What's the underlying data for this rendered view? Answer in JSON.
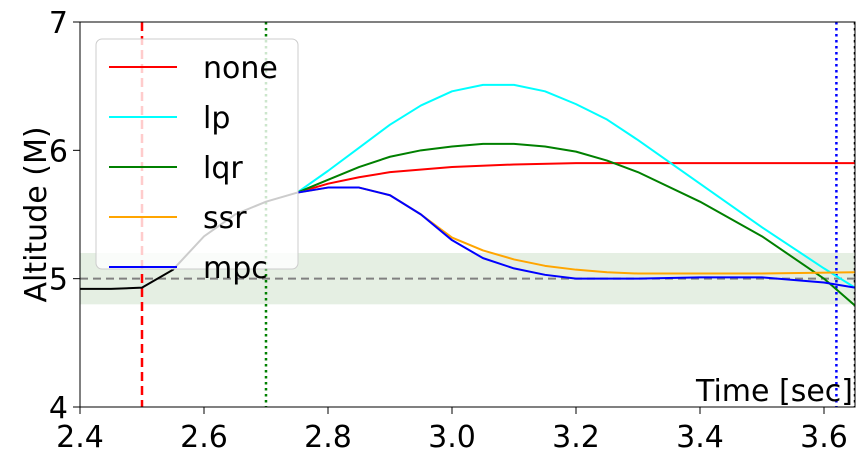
{
  "chart_data": {
    "type": "line",
    "title": "",
    "xlabel": "Time [sec]",
    "ylabel": "Altitude (M)",
    "xlim": [
      2.4,
      3.65
    ],
    "ylim": [
      4,
      7
    ],
    "xticks": [
      2.4,
      2.6,
      2.8,
      3.0,
      3.2,
      3.4,
      3.6
    ],
    "xtick_labels": [
      "2.4",
      "2.6",
      "2.8",
      "3.0",
      "3.2",
      "3.4",
      "3.6"
    ],
    "yticks": [
      4,
      5,
      6,
      7
    ],
    "ytick_labels": [
      "4",
      "5",
      "6",
      "7"
    ],
    "grid": false,
    "legend": {
      "location": "upper left",
      "entries": [
        "none",
        "lp",
        "lqr",
        "ssr",
        "mpc"
      ]
    },
    "colors": {
      "none": "#ff0000",
      "lp": "#00ffff",
      "lqr": "#008000",
      "ssr": "#ffa500",
      "mpc": "#0000ff",
      "band": "#e5efe3",
      "target_line": "#808080",
      "shared_segment": "#000000"
    },
    "target_band": {
      "y_min": 4.8,
      "y_max": 5.2
    },
    "target_line": {
      "y": 5.0,
      "style": "dashed"
    },
    "vertical_lines": [
      {
        "x": 2.5,
        "color": "#ff0000",
        "style": "dashed"
      },
      {
        "x": 2.7,
        "color": "#008000",
        "style": "dotted"
      },
      {
        "x": 3.62,
        "color": "#0000ff",
        "style": "dotted"
      },
      {
        "x": 3.65,
        "color": "#000000",
        "style": "dotted"
      }
    ],
    "shared_segment": {
      "x": [
        2.4,
        2.45,
        2.5,
        2.55,
        2.6,
        2.65,
        2.7,
        2.75
      ],
      "y": [
        4.92,
        4.92,
        4.93,
        5.07,
        5.33,
        5.5,
        5.6,
        5.67
      ]
    },
    "series": [
      {
        "name": "none",
        "x": [
          2.75,
          2.8,
          2.85,
          2.9,
          3.0,
          3.1,
          3.2,
          3.3,
          3.4,
          3.5,
          3.65
        ],
        "y": [
          5.67,
          5.74,
          5.79,
          5.83,
          5.87,
          5.89,
          5.9,
          5.9,
          5.9,
          5.9,
          5.9
        ]
      },
      {
        "name": "lp",
        "x": [
          2.75,
          2.8,
          2.85,
          2.9,
          2.95,
          3.0,
          3.05,
          3.1,
          3.15,
          3.2,
          3.25,
          3.3,
          3.4,
          3.5,
          3.6,
          3.65
        ],
        "y": [
          5.67,
          5.84,
          6.02,
          6.2,
          6.35,
          6.46,
          6.51,
          6.51,
          6.46,
          6.36,
          6.24,
          6.08,
          5.74,
          5.4,
          5.08,
          4.93
        ]
      },
      {
        "name": "lqr",
        "x": [
          2.75,
          2.8,
          2.85,
          2.9,
          2.95,
          3.0,
          3.05,
          3.1,
          3.15,
          3.2,
          3.25,
          3.3,
          3.4,
          3.5,
          3.6,
          3.65
        ],
        "y": [
          5.67,
          5.77,
          5.87,
          5.95,
          6.0,
          6.03,
          6.05,
          6.05,
          6.03,
          5.99,
          5.92,
          5.83,
          5.6,
          5.33,
          5.0,
          4.79
        ]
      },
      {
        "name": "ssr",
        "x": [
          2.75,
          2.8,
          2.85,
          2.9,
          2.95,
          3.0,
          3.05,
          3.1,
          3.15,
          3.2,
          3.25,
          3.3,
          3.4,
          3.5,
          3.65
        ],
        "y": [
          5.67,
          5.71,
          5.71,
          5.65,
          5.5,
          5.32,
          5.22,
          5.15,
          5.1,
          5.07,
          5.05,
          5.04,
          5.04,
          5.04,
          5.05
        ]
      },
      {
        "name": "mpc",
        "x": [
          2.75,
          2.8,
          2.85,
          2.9,
          2.95,
          3.0,
          3.05,
          3.1,
          3.15,
          3.2,
          3.25,
          3.3,
          3.4,
          3.5,
          3.6,
          3.65
        ],
        "y": [
          5.67,
          5.71,
          5.71,
          5.65,
          5.5,
          5.3,
          5.16,
          5.08,
          5.03,
          5.0,
          5.0,
          5.0,
          5.01,
          5.01,
          4.97,
          4.93
        ]
      }
    ]
  }
}
